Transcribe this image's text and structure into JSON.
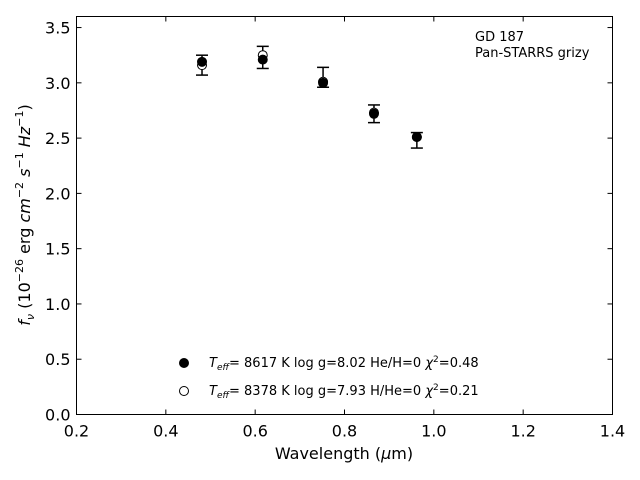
{
  "chart_data": {
    "type": "scatter",
    "xlabel": "Wavelength (μm)",
    "ylabel": "f_ν (10^-26 erg cm^-2 s^-1 Hz^-1)",
    "xlim": [
      0.2,
      1.4
    ],
    "ylim": [
      0.0,
      3.6
    ],
    "x_ticks": [
      0.2,
      0.4,
      0.6,
      0.8,
      1.0,
      1.2,
      1.4
    ],
    "x_tick_labels": [
      "0.2",
      "0.4",
      "0.6",
      "0.8",
      "1.0",
      "1.2",
      "1.4"
    ],
    "y_ticks": [
      0.0,
      0.5,
      1.0,
      1.5,
      2.0,
      2.5,
      3.0,
      3.5
    ],
    "y_tick_labels": [
      "0.0",
      "0.5",
      "1.0",
      "1.5",
      "2.0",
      "2.5",
      "3.0",
      "3.5"
    ],
    "grid": false,
    "annotation": [
      "GD 187",
      "Pan-STARRS grizy"
    ],
    "observed": {
      "x": [
        0.481,
        0.617,
        0.752,
        0.866,
        0.962
      ],
      "y": [
        3.16,
        3.23,
        3.05,
        2.72,
        2.48
      ],
      "yerr": [
        0.09,
        0.1,
        0.09,
        0.08,
        0.07
      ]
    },
    "series": [
      {
        "name": "T_eff= 8617 K log g=8.02 He/H=0 χ²=0.48",
        "marker": "filled-circle",
        "x": [
          0.481,
          0.617,
          0.752,
          0.866,
          0.962
        ],
        "y": [
          3.19,
          3.21,
          3.0,
          2.72,
          2.51
        ]
      },
      {
        "name": "T_eff= 8378 K log g=7.93 H/He=0 χ²=0.21",
        "marker": "open-circle",
        "x": [
          0.481,
          0.617,
          0.752,
          0.866,
          0.962
        ],
        "y": [
          3.16,
          3.25,
          3.01,
          2.73,
          2.51
        ]
      }
    ],
    "legend_placement": "bottom-center",
    "legend": [
      {
        "teff": "8617",
        "logg": "8.02",
        "comp": "He/H=0",
        "chi2": "0.48"
      },
      {
        "teff": "8378",
        "logg": "7.93",
        "comp": "H/He=0",
        "chi2": "0.21"
      }
    ]
  }
}
